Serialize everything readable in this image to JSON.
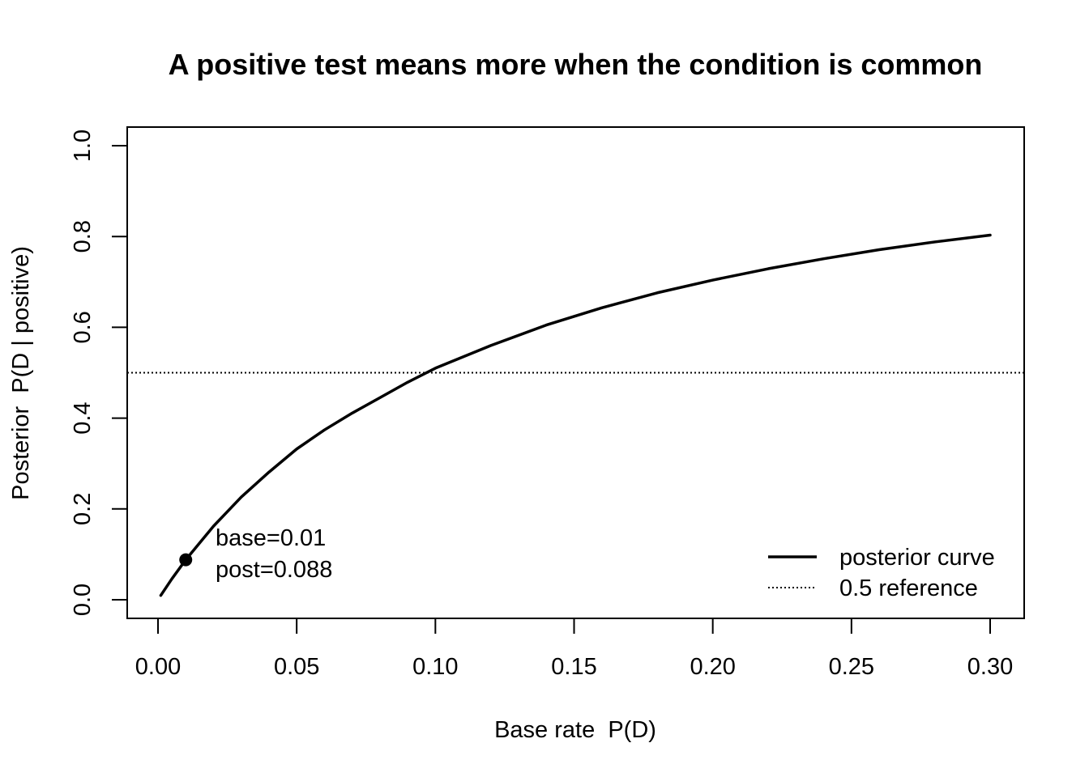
{
  "chart_data": {
    "type": "line",
    "title": "A positive test means more when the condition is common",
    "xlabel": "Base rate  P(D)",
    "ylabel": "Posterior  P(D | positive)",
    "xlim": [
      0.001,
      0.3
    ],
    "ylim": [
      0.0,
      1.0
    ],
    "xticks": [
      "0.00",
      "0.05",
      "0.10",
      "0.15",
      "0.20",
      "0.25",
      "0.30"
    ],
    "yticks": [
      "0.0",
      "0.2",
      "0.4",
      "0.6",
      "0.8",
      "1.0"
    ],
    "series": [
      {
        "name": "posterior curve",
        "style": "solid",
        "x": [
          0.001,
          0.005,
          0.01,
          0.02,
          0.03,
          0.04,
          0.05,
          0.06,
          0.07,
          0.08,
          0.09,
          0.1,
          0.12,
          0.14,
          0.16,
          0.18,
          0.2,
          0.22,
          0.24,
          0.26,
          0.28,
          0.3
        ],
        "y": [
          0.0095,
          0.046,
          0.088,
          0.162,
          0.226,
          0.281,
          0.332,
          0.374,
          0.411,
          0.445,
          0.479,
          0.51,
          0.56,
          0.605,
          0.643,
          0.676,
          0.704,
          0.729,
          0.751,
          0.771,
          0.788,
          0.803
        ]
      },
      {
        "name": "0.5 reference",
        "style": "dotted",
        "x": [
          0.0,
          0.3
        ],
        "y": [
          0.5,
          0.5
        ]
      }
    ],
    "highlight": {
      "x": 0.01,
      "y": 0.088,
      "label_line1": "base=0.01",
      "label_line2": "post=0.088"
    },
    "legend": {
      "position": "bottom-right",
      "entries": [
        "posterior curve",
        "0.5 reference"
      ]
    },
    "grid": false
  }
}
